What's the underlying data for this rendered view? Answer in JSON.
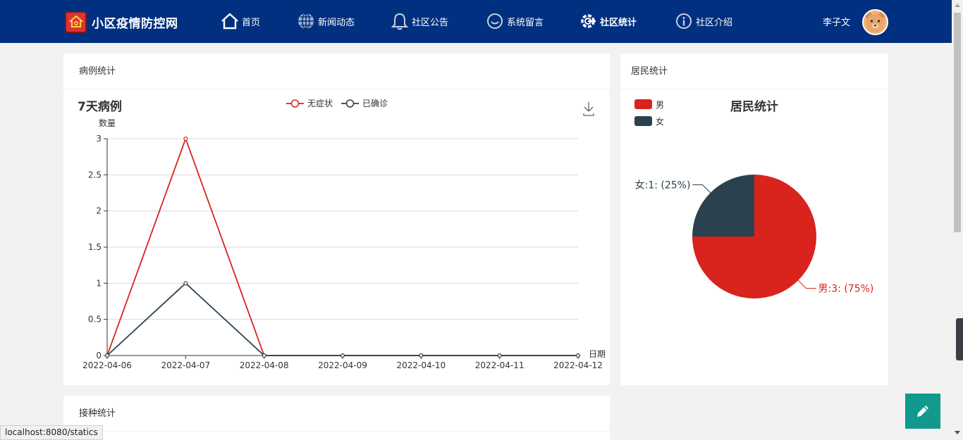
{
  "brand": {
    "title": "小区疫情防控网"
  },
  "nav": [
    {
      "label": "首页",
      "icon": "home-icon",
      "active": false
    },
    {
      "label": "新闻动态",
      "icon": "globe-icon",
      "active": false
    },
    {
      "label": "社区公告",
      "icon": "bell-icon",
      "active": false
    },
    {
      "label": "系统留言",
      "icon": "smile-icon",
      "active": false
    },
    {
      "label": "社区统计",
      "icon": "gear-icon",
      "active": true
    },
    {
      "label": "社区介绍",
      "icon": "info-icon",
      "active": false
    }
  ],
  "user": {
    "name": "李子文"
  },
  "cards": {
    "cases": {
      "header": "病例统计"
    },
    "residents": {
      "header": "居民统计"
    },
    "vaccination": {
      "header": "接种统计"
    }
  },
  "status_url": "localhost:8080/statics",
  "colors": {
    "nav_bg": "#00307f",
    "series_red": "#d9231d",
    "series_dark": "#2b4150",
    "fab": "#11998e"
  },
  "chart_data": [
    {
      "type": "line",
      "title": "7天病例",
      "ylabel": "数量",
      "xlabel": "日期",
      "x": [
        "2022-04-06",
        "2022-04-07",
        "2022-04-08",
        "2022-04-09",
        "2022-04-10",
        "2022-04-11",
        "2022-04-12"
      ],
      "ylim": [
        0,
        3
      ],
      "yticks": [
        "0",
        "0.5",
        "1",
        "1.5",
        "2",
        "2.5",
        "3"
      ],
      "grid": true,
      "legend": "top-center",
      "series": [
        {
          "name": "无症状",
          "color": "#d9231d",
          "values": [
            0,
            3,
            0,
            0,
            0,
            0,
            0
          ]
        },
        {
          "name": "已确诊",
          "color": "#2b4150",
          "values": [
            0,
            1,
            0,
            0,
            0,
            0,
            0
          ]
        }
      ]
    },
    {
      "type": "pie",
      "title": "居民统计",
      "legend": "top-left",
      "slices": [
        {
          "name": "男",
          "value": 3,
          "percent": "75%",
          "label": "男:3: (75%)",
          "color": "#d9231d"
        },
        {
          "name": "女",
          "value": 1,
          "percent": "25%",
          "label": "女:1: (25%)",
          "color": "#2b4150"
        }
      ]
    }
  ]
}
